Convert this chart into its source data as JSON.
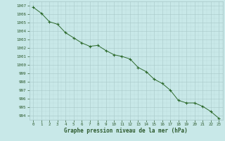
{
  "x": [
    0,
    1,
    2,
    3,
    4,
    5,
    6,
    7,
    8,
    9,
    10,
    11,
    12,
    13,
    14,
    15,
    16,
    17,
    18,
    19,
    20,
    21,
    22,
    23
  ],
  "y": [
    1006.8,
    1006.1,
    1005.1,
    1004.8,
    1003.8,
    1003.2,
    1002.6,
    1002.2,
    1002.3,
    1001.7,
    1001.2,
    1001.0,
    1000.7,
    999.7,
    999.2,
    998.3,
    997.8,
    997.0,
    995.8,
    995.5,
    995.5,
    995.1,
    994.5,
    993.7
  ],
  "line_color": "#2d6a2d",
  "marker": "+",
  "marker_color": "#2d6a2d",
  "bg_color": "#c8e8e8",
  "grid_major_color": "#a8c8c8",
  "grid_minor_color": "#b8d8d8",
  "xlabel": "Graphe pression niveau de la mer (hPa)",
  "xlabel_color": "#2d5a2d",
  "ylabel_ticks": [
    994,
    995,
    996,
    997,
    998,
    999,
    1000,
    1001,
    1002,
    1003,
    1004,
    1005,
    1006,
    1007
  ],
  "ylim": [
    993.5,
    1007.5
  ],
  "xlim": [
    -0.5,
    23.5
  ],
  "tick_label_color": "#2d5a2d"
}
